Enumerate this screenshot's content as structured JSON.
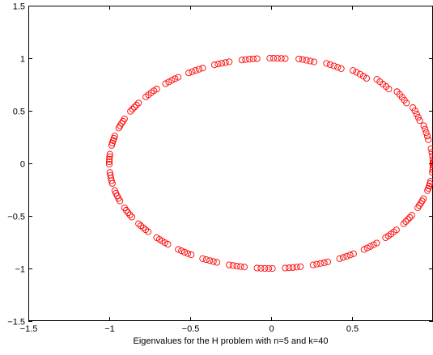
{
  "chart_data": {
    "type": "scatter",
    "title": "",
    "xlabel": "Eigenvalues for the H problem with n=5 and  k=40",
    "ylabel": "",
    "xlim": [
      -1.5,
      1
    ],
    "ylim": [
      -1.5,
      1.5
    ],
    "xticks": [
      -1.5,
      -1,
      -0.5,
      0,
      0.5
    ],
    "xtick_labels": [
      "−1.5",
      "−1",
      "−0.5",
      "0",
      "0.5"
    ],
    "yticks": [
      -1.5,
      -1,
      -0.5,
      0,
      0.5,
      1,
      1.5
    ],
    "ytick_labels": [
      "−1.5",
      "−1",
      "−0.5",
      "0",
      "0.5",
      "1",
      "1.5"
    ],
    "grid": false,
    "legend": "none",
    "marker": "circle",
    "marker_color": "#ff0000",
    "series": [
      {
        "name": "",
        "note_points": "points lie on the unit circle, clustered in groups of 5",
        "x": [
          1.0,
          0.999,
          0.997,
          0.993,
          0.988,
          0.971,
          0.965,
          0.958,
          0.951,
          0.943,
          0.918,
          0.909,
          0.899,
          0.888,
          0.876,
          0.836,
          0.823,
          0.809,
          0.794,
          0.778,
          0.727,
          0.71,
          0.691,
          0.672,
          0.653,
          0.59,
          0.57,
          0.549,
          0.527,
          0.506,
          0.433,
          0.411,
          0.388,
          0.364,
          0.342,
          0.265,
          0.242,
          0.218,
          0.194,
          0.171,
          0.087,
          0.063,
          0.039,
          0.015,
          -0.008,
          -0.087,
          -0.111,
          -0.134,
          -0.158,
          -0.181,
          -0.259,
          -0.282,
          -0.305,
          -0.328,
          -0.35,
          -0.423,
          -0.445,
          -0.467,
          -0.488,
          -0.509,
          -0.574,
          -0.594,
          -0.613,
          -0.633,
          -0.652,
          -0.707,
          -0.724,
          -0.741,
          -0.758,
          -0.774,
          -0.819,
          -0.832,
          -0.845,
          -0.857,
          -0.869,
          -0.906,
          -0.915,
          -0.924,
          -0.933,
          -0.941,
          -0.966,
          -0.971,
          -0.976,
          -0.981,
          -0.985,
          -0.996,
          -0.998,
          -0.999,
          -1.0,
          -1.0,
          -0.996,
          -0.993,
          -0.99,
          -0.986,
          -0.981,
          -0.966,
          -0.959,
          -0.951,
          -0.943,
          -0.934,
          -0.906,
          -0.895,
          -0.884,
          -0.872,
          -0.86,
          -0.819,
          -0.805,
          -0.79,
          -0.775,
          -0.76,
          -0.707,
          -0.69,
          -0.673,
          -0.656,
          -0.638,
          -0.574,
          -0.554,
          -0.535,
          -0.515,
          -0.494,
          -0.423,
          -0.401,
          -0.379,
          -0.357,
          -0.335,
          -0.259,
          -0.236,
          -0.212,
          -0.189,
          -0.165,
          -0.087,
          -0.063,
          -0.039,
          -0.015,
          0.008,
          0.087,
          0.111,
          0.134,
          0.158,
          0.181,
          0.259,
          0.282,
          0.305,
          0.328,
          0.35,
          0.423,
          0.445,
          0.467,
          0.488,
          0.509,
          0.574,
          0.594,
          0.613,
          0.633,
          0.652,
          0.707,
          0.724,
          0.741,
          0.758,
          0.774,
          0.819,
          0.832,
          0.845,
          0.857,
          0.869,
          0.906,
          0.915,
          0.924,
          0.933,
          0.941,
          0.966,
          0.971,
          0.976,
          0.981,
          0.985,
          0.996,
          0.998,
          0.999,
          1.0,
          1.0
        ],
        "y": [
          0.0,
          0.035,
          0.07,
          0.105,
          0.139,
          0.225,
          0.259,
          0.292,
          0.326,
          0.358,
          0.407,
          0.438,
          0.469,
          0.5,
          0.53,
          0.574,
          0.602,
          0.629,
          0.656,
          0.682,
          0.707,
          0.731,
          0.754,
          0.777,
          0.799,
          0.809,
          0.829,
          0.848,
          0.866,
          0.883,
          0.901,
          0.914,
          0.927,
          0.939,
          0.951,
          0.965,
          0.973,
          0.981,
          0.988,
          0.993,
          0.996,
          0.998,
          0.999,
          1.0,
          1.0,
          0.996,
          0.994,
          0.991,
          0.987,
          0.983,
          0.966,
          0.959,
          0.952,
          0.945,
          0.937,
          0.906,
          0.895,
          0.884,
          0.872,
          0.86,
          0.819,
          0.805,
          0.79,
          0.774,
          0.758,
          0.707,
          0.69,
          0.672,
          0.652,
          0.633,
          0.574,
          0.554,
          0.534,
          0.515,
          0.495,
          0.423,
          0.401,
          0.381,
          0.358,
          0.336,
          0.259,
          0.238,
          0.216,
          0.193,
          0.171,
          0.087,
          0.063,
          0.039,
          0.015,
          -0.008,
          -0.087,
          -0.113,
          -0.139,
          -0.165,
          -0.191,
          -0.259,
          -0.284,
          -0.309,
          -0.334,
          -0.358,
          -0.423,
          -0.446,
          -0.469,
          -0.49,
          -0.511,
          -0.574,
          -0.594,
          -0.613,
          -0.632,
          -0.65,
          -0.707,
          -0.723,
          -0.739,
          -0.755,
          -0.77,
          -0.819,
          -0.832,
          -0.845,
          -0.858,
          -0.869,
          -0.906,
          -0.916,
          -0.925,
          -0.934,
          -0.942,
          -0.966,
          -0.972,
          -0.977,
          -0.982,
          -0.986,
          -0.996,
          -0.998,
          -0.999,
          -1.0,
          -1.0,
          -0.996,
          -0.994,
          -0.991,
          -0.987,
          -0.983,
          -0.966,
          -0.959,
          -0.952,
          -0.945,
          -0.937,
          -0.906,
          -0.895,
          -0.884,
          -0.872,
          -0.86,
          -0.819,
          -0.805,
          -0.79,
          -0.774,
          -0.758,
          -0.707,
          -0.69,
          -0.672,
          -0.652,
          -0.633,
          -0.574,
          -0.554,
          -0.534,
          -0.515,
          -0.495,
          -0.423,
          -0.401,
          -0.381,
          -0.358,
          -0.336,
          -0.259,
          -0.238,
          -0.216,
          -0.193,
          -0.171,
          -0.087,
          -0.063,
          -0.039,
          -0.015,
          0.008
        ]
      }
    ]
  }
}
